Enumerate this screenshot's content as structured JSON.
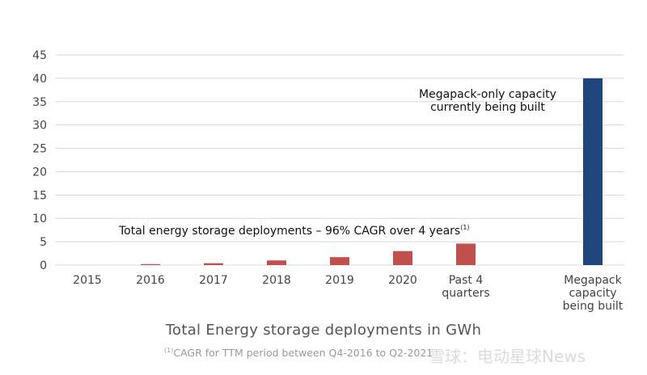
{
  "colors": {
    "bar": "#c0504d",
    "megapack_bar": "#1f467c",
    "grid": "#d9d9d9",
    "text": "#444444"
  },
  "chart_data": {
    "type": "bar",
    "ylim": [
      0,
      45
    ],
    "yticks": [
      "0",
      "5",
      "10",
      "15",
      "20",
      "25",
      "30",
      "35",
      "40",
      "45"
    ],
    "categories": [
      {
        "label": [
          "2015"
        ],
        "value": 0
      },
      {
        "label": [
          "2016"
        ],
        "value": 0.2
      },
      {
        "label": [
          "2017"
        ],
        "value": 0.4
      },
      {
        "label": [
          "2018"
        ],
        "value": 1.0
      },
      {
        "label": [
          "2019"
        ],
        "value": 1.7
      },
      {
        "label": [
          "2020"
        ],
        "value": 3.0
      },
      {
        "label": [
          "Past 4",
          "quarters"
        ],
        "value": 4.6
      },
      {
        "label": [
          "Megapack",
          "capacity",
          "being built"
        ],
        "value": 40,
        "highlight": true
      }
    ],
    "annotation_main": "Total energy storage deployments – 96% CAGR over 4 years",
    "annotation_main_sup": "(1)",
    "annotation_megapack": [
      "Megapack-only capacity",
      "currently being built"
    ],
    "title": "Total Energy storage deployments in GWh"
  },
  "footnote": {
    "sup": "(1)",
    "text": "CAGR for TTM period between Q4-2016 to Q2-2021"
  },
  "watermark": "雪球：电动星球News"
}
